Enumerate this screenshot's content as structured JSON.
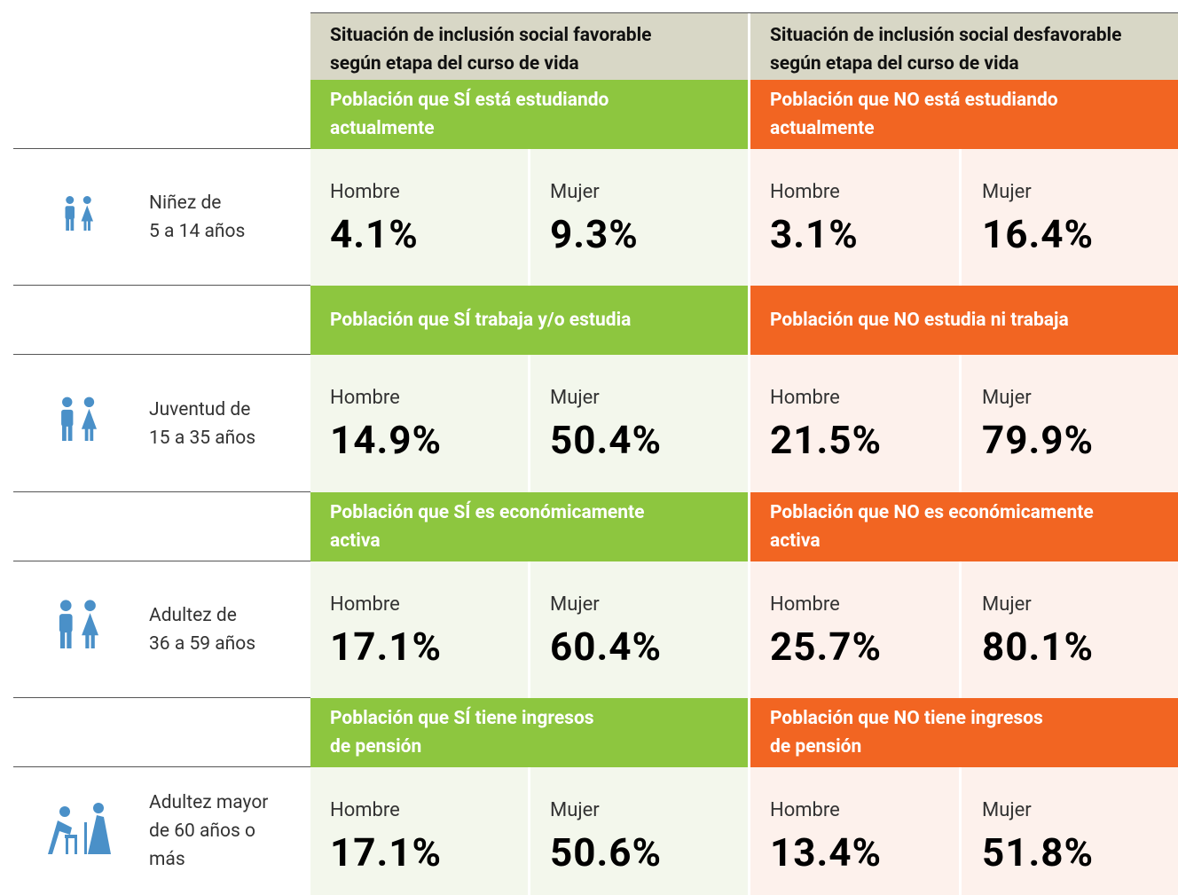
{
  "header": {
    "favorable": [
      "Situación de inclusión social favorable",
      "según etapa del curso de vida"
    ],
    "unfavorable": [
      "Situación de inclusión social desfavorable",
      "según etapa del curso de vida"
    ]
  },
  "groups": [
    {
      "favorable": [
        "Población que SÍ está estudiando",
        "actualmente"
      ],
      "unfavorable": [
        "Población que NO está estudiando",
        "actualmente"
      ],
      "label": [
        "Niñez de",
        "5 a 14 años"
      ],
      "cells": [
        {
          "sex": "Hombre",
          "value": "4.1%"
        },
        {
          "sex": "Mujer",
          "value": "9.3%"
        },
        {
          "sex": "Hombre",
          "value": "3.1%"
        },
        {
          "sex": "Mujer",
          "value": "16.4%"
        }
      ]
    },
    {
      "favorable": [
        "Población que SÍ trabaja y/o estudia"
      ],
      "unfavorable": [
        "Población que NO estudia ni trabaja"
      ],
      "label": [
        "Juventud de",
        "15 a 35 años"
      ],
      "cells": [
        {
          "sex": "Hombre",
          "value": "14.9%"
        },
        {
          "sex": "Mujer",
          "value": "50.4%"
        },
        {
          "sex": "Hombre",
          "value": "21.5%"
        },
        {
          "sex": "Mujer",
          "value": "79.9%"
        }
      ]
    },
    {
      "favorable": [
        "Población que SÍ es económicamente",
        "activa"
      ],
      "unfavorable": [
        "Población que NO es económicamente",
        "activa"
      ],
      "label": [
        "Adultez de",
        "36 a 59 años"
      ],
      "cells": [
        {
          "sex": "Hombre",
          "value": "17.1%"
        },
        {
          "sex": "Mujer",
          "value": "60.4%"
        },
        {
          "sex": "Hombre",
          "value": "25.7%"
        },
        {
          "sex": "Mujer",
          "value": "80.1%"
        }
      ]
    },
    {
      "favorable": [
        "Población que SÍ tiene ingresos",
        "de pensión"
      ],
      "unfavorable": [
        "Población que NO tiene ingresos",
        "de pensión"
      ],
      "label": [
        "Adultez mayor",
        "de 60 años o",
        "más"
      ],
      "cells": [
        {
          "sex": "Hombre",
          "value": "17.1%"
        },
        {
          "sex": "Mujer",
          "value": "50.6%"
        },
        {
          "sex": "Hombre",
          "value": "13.4%"
        },
        {
          "sex": "Mujer",
          "value": "51.8%"
        }
      ]
    }
  ]
}
